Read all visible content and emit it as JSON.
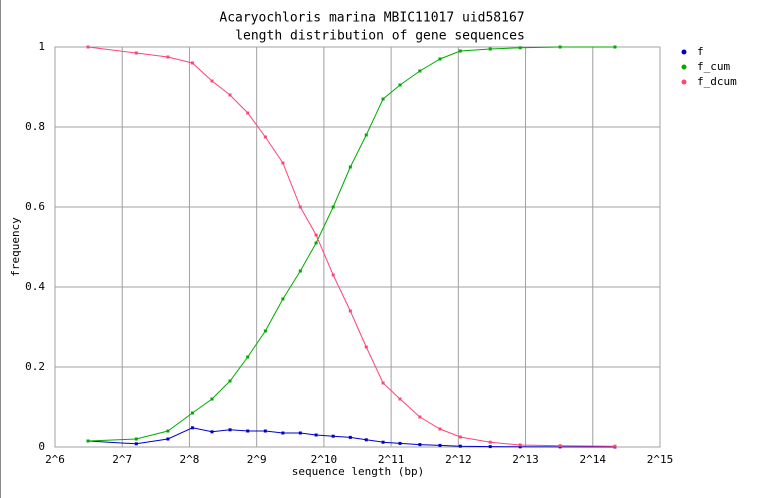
{
  "chart_data": {
    "type": "line",
    "title": "Acaryochloris marina MBIC11017 uid58167",
    "subtitle": "length distribution of gene sequences",
    "x_label": "sequence length (bp)",
    "y_label": "frequency",
    "xlog": true,
    "log_base": 2,
    "grid": true,
    "legend": "top-right",
    "x": [
      90,
      148,
      205,
      264,
      323,
      389,
      467,
      560,
      671,
      803,
      945,
      1127,
      1345,
      1585,
      1885,
      2245,
      2755,
      3390,
      4180,
      5690,
      7750,
      11700,
      20600
    ],
    "series": [
      {
        "name": "f",
        "color": "#0000cc",
        "values": [
          0.015,
          0.008,
          0.02,
          0.048,
          0.038,
          0.043,
          0.04,
          0.04,
          0.035,
          0.035,
          0.03,
          0.027,
          0.024,
          0.018,
          0.012,
          0.009,
          0.006,
          0.004,
          0.002,
          0.001,
          0.0005,
          0.0003,
          0.0001
        ]
      },
      {
        "name": "f_cum",
        "color": "#00aa00",
        "values": [
          0.015,
          0.02,
          0.04,
          0.085,
          0.12,
          0.165,
          0.225,
          0.29,
          0.37,
          0.44,
          0.51,
          0.6,
          0.7,
          0.78,
          0.87,
          0.905,
          0.94,
          0.97,
          0.99,
          0.995,
          0.998,
          1,
          1
        ]
      },
      {
        "name": "f_dcum",
        "color": "#ff4477",
        "values": [
          1,
          0.985,
          0.975,
          0.96,
          0.915,
          0.88,
          0.835,
          0.775,
          0.71,
          0.6,
          0.53,
          0.43,
          0.34,
          0.25,
          0.16,
          0.12,
          0.075,
          0.045,
          0.025,
          0.012,
          0.005,
          0.003,
          0.002
        ]
      }
    ],
    "xlim": [
      64,
      32768
    ],
    "xticks": [
      {
        "value": 64,
        "label": "2^6"
      },
      {
        "value": 128,
        "label": "2^7"
      },
      {
        "value": 256,
        "label": "2^8"
      },
      {
        "value": 512,
        "label": "2^9"
      },
      {
        "value": 1024,
        "label": "2^10"
      },
      {
        "value": 2048,
        "label": "2^11"
      },
      {
        "value": 4096,
        "label": "2^12"
      },
      {
        "value": 8192,
        "label": "2^13"
      },
      {
        "value": 16384,
        "label": "2^14"
      },
      {
        "value": 32768,
        "label": "2^15"
      }
    ],
    "ylim": [
      0,
      1
    ],
    "yticks": [
      0,
      0.2,
      0.4,
      0.6,
      0.8,
      1
    ]
  }
}
